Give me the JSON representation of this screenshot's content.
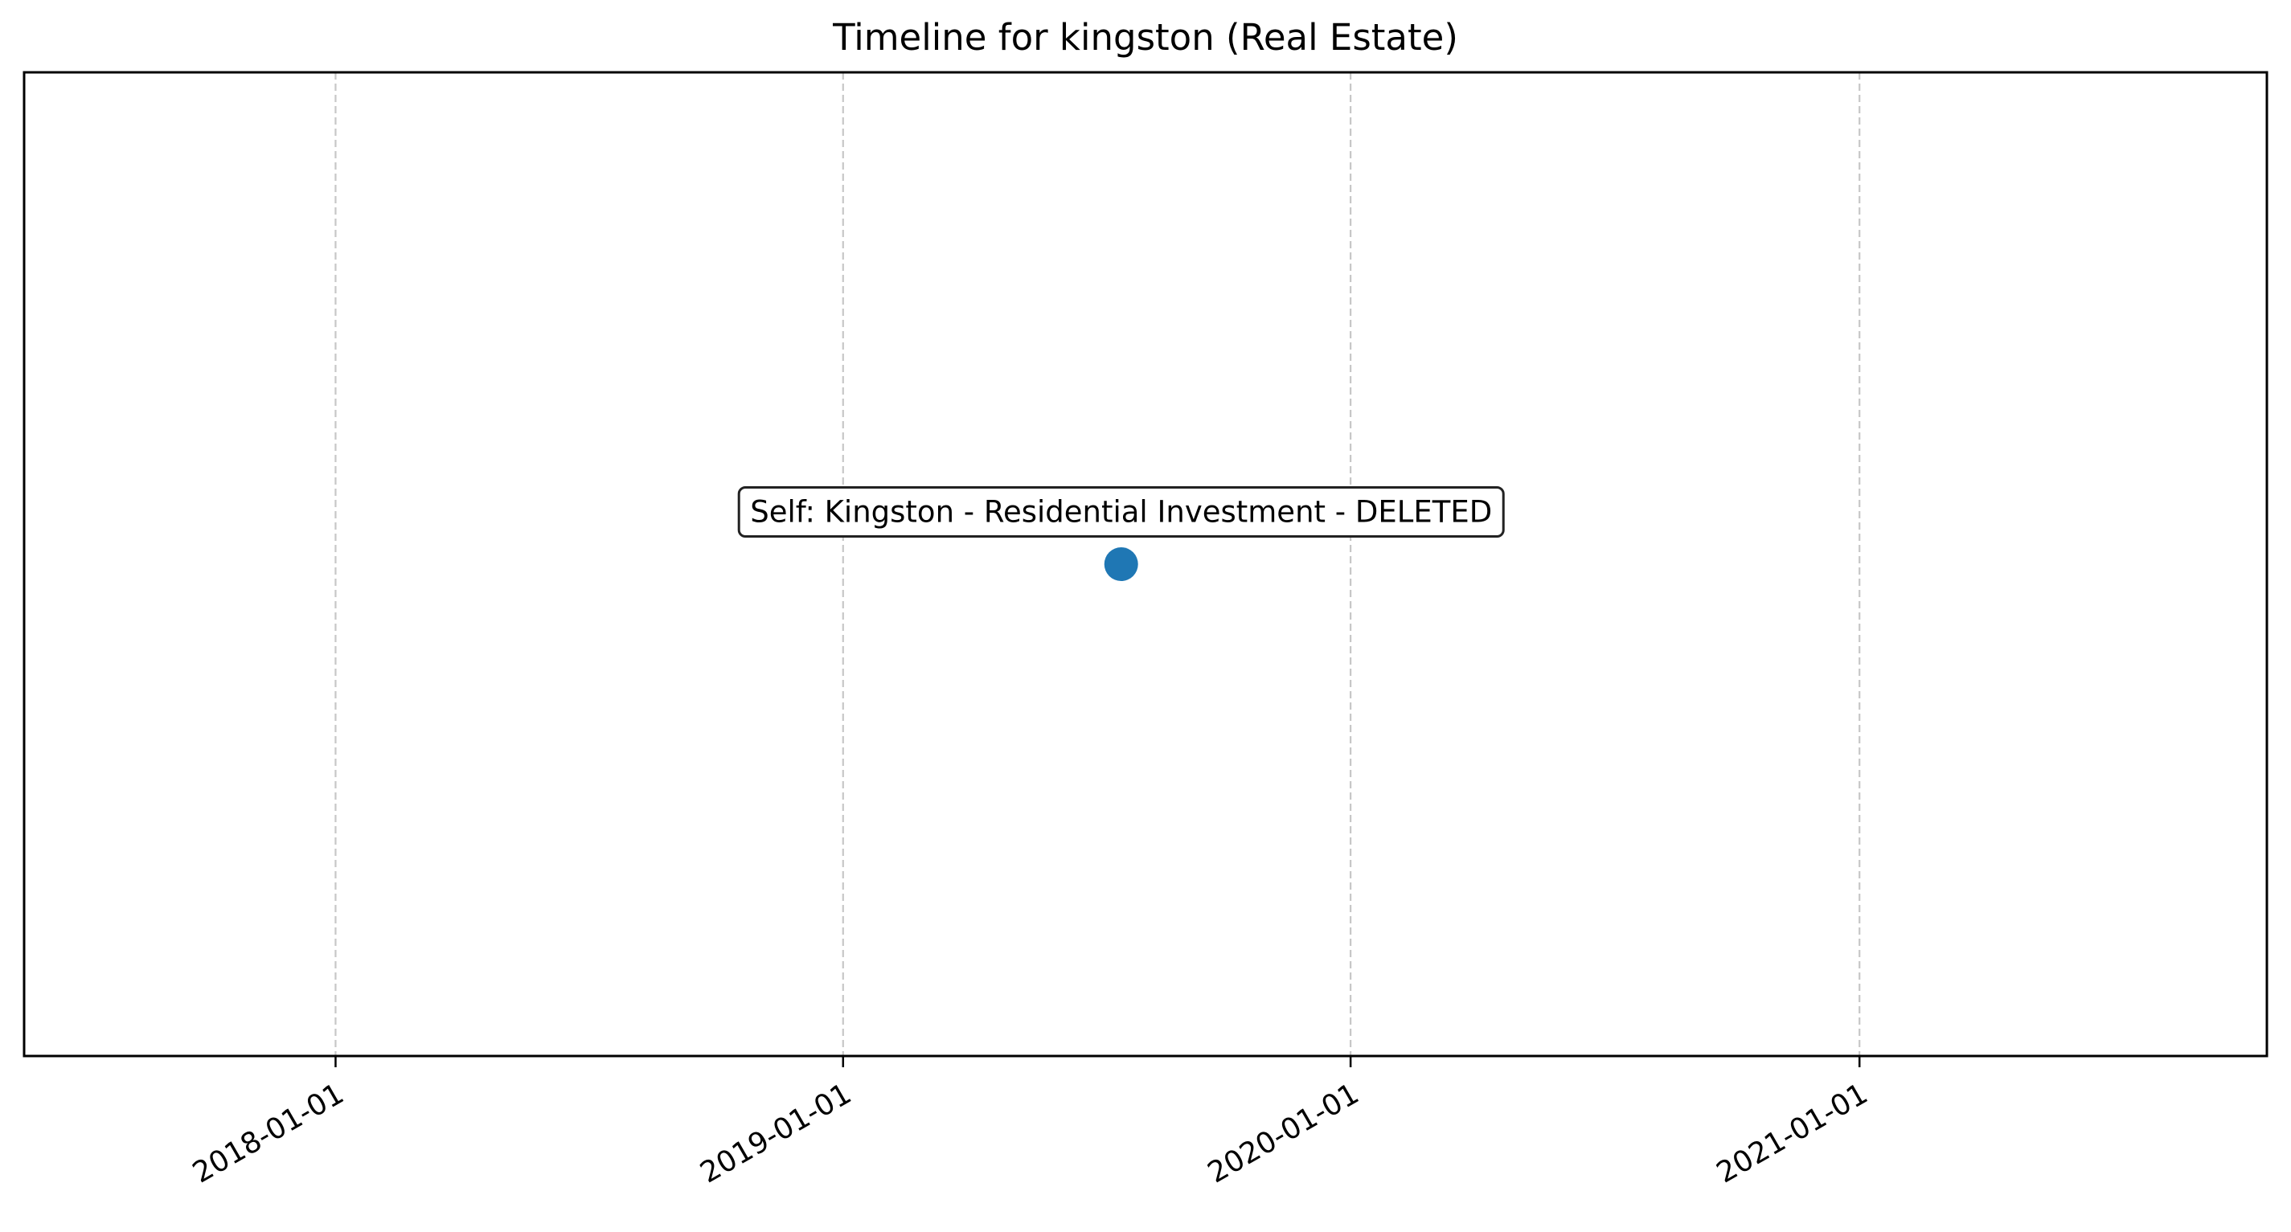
{
  "chart_data": {
    "type": "scatter",
    "title": "Timeline for kingston (Real Estate)",
    "xlabel": "",
    "ylabel": "",
    "xlim": [
      "2017-05-22",
      "2021-10-21"
    ],
    "ylim": [
      0,
      1
    ],
    "grid": {
      "x": true,
      "y": false,
      "style": "dashed"
    },
    "x_ticks": [
      "2018-01-01",
      "2019-01-01",
      "2020-01-01",
      "2021-01-01"
    ],
    "series": [
      {
        "points": [
          {
            "x": "2019-07-20",
            "y": 0.5,
            "label": "Self: Kingston - Residential Investment - DELETED"
          }
        ]
      }
    ],
    "colors": {
      "marker": "#1f77b4",
      "grid": "#c7c7c7",
      "axes": "#000000"
    }
  }
}
